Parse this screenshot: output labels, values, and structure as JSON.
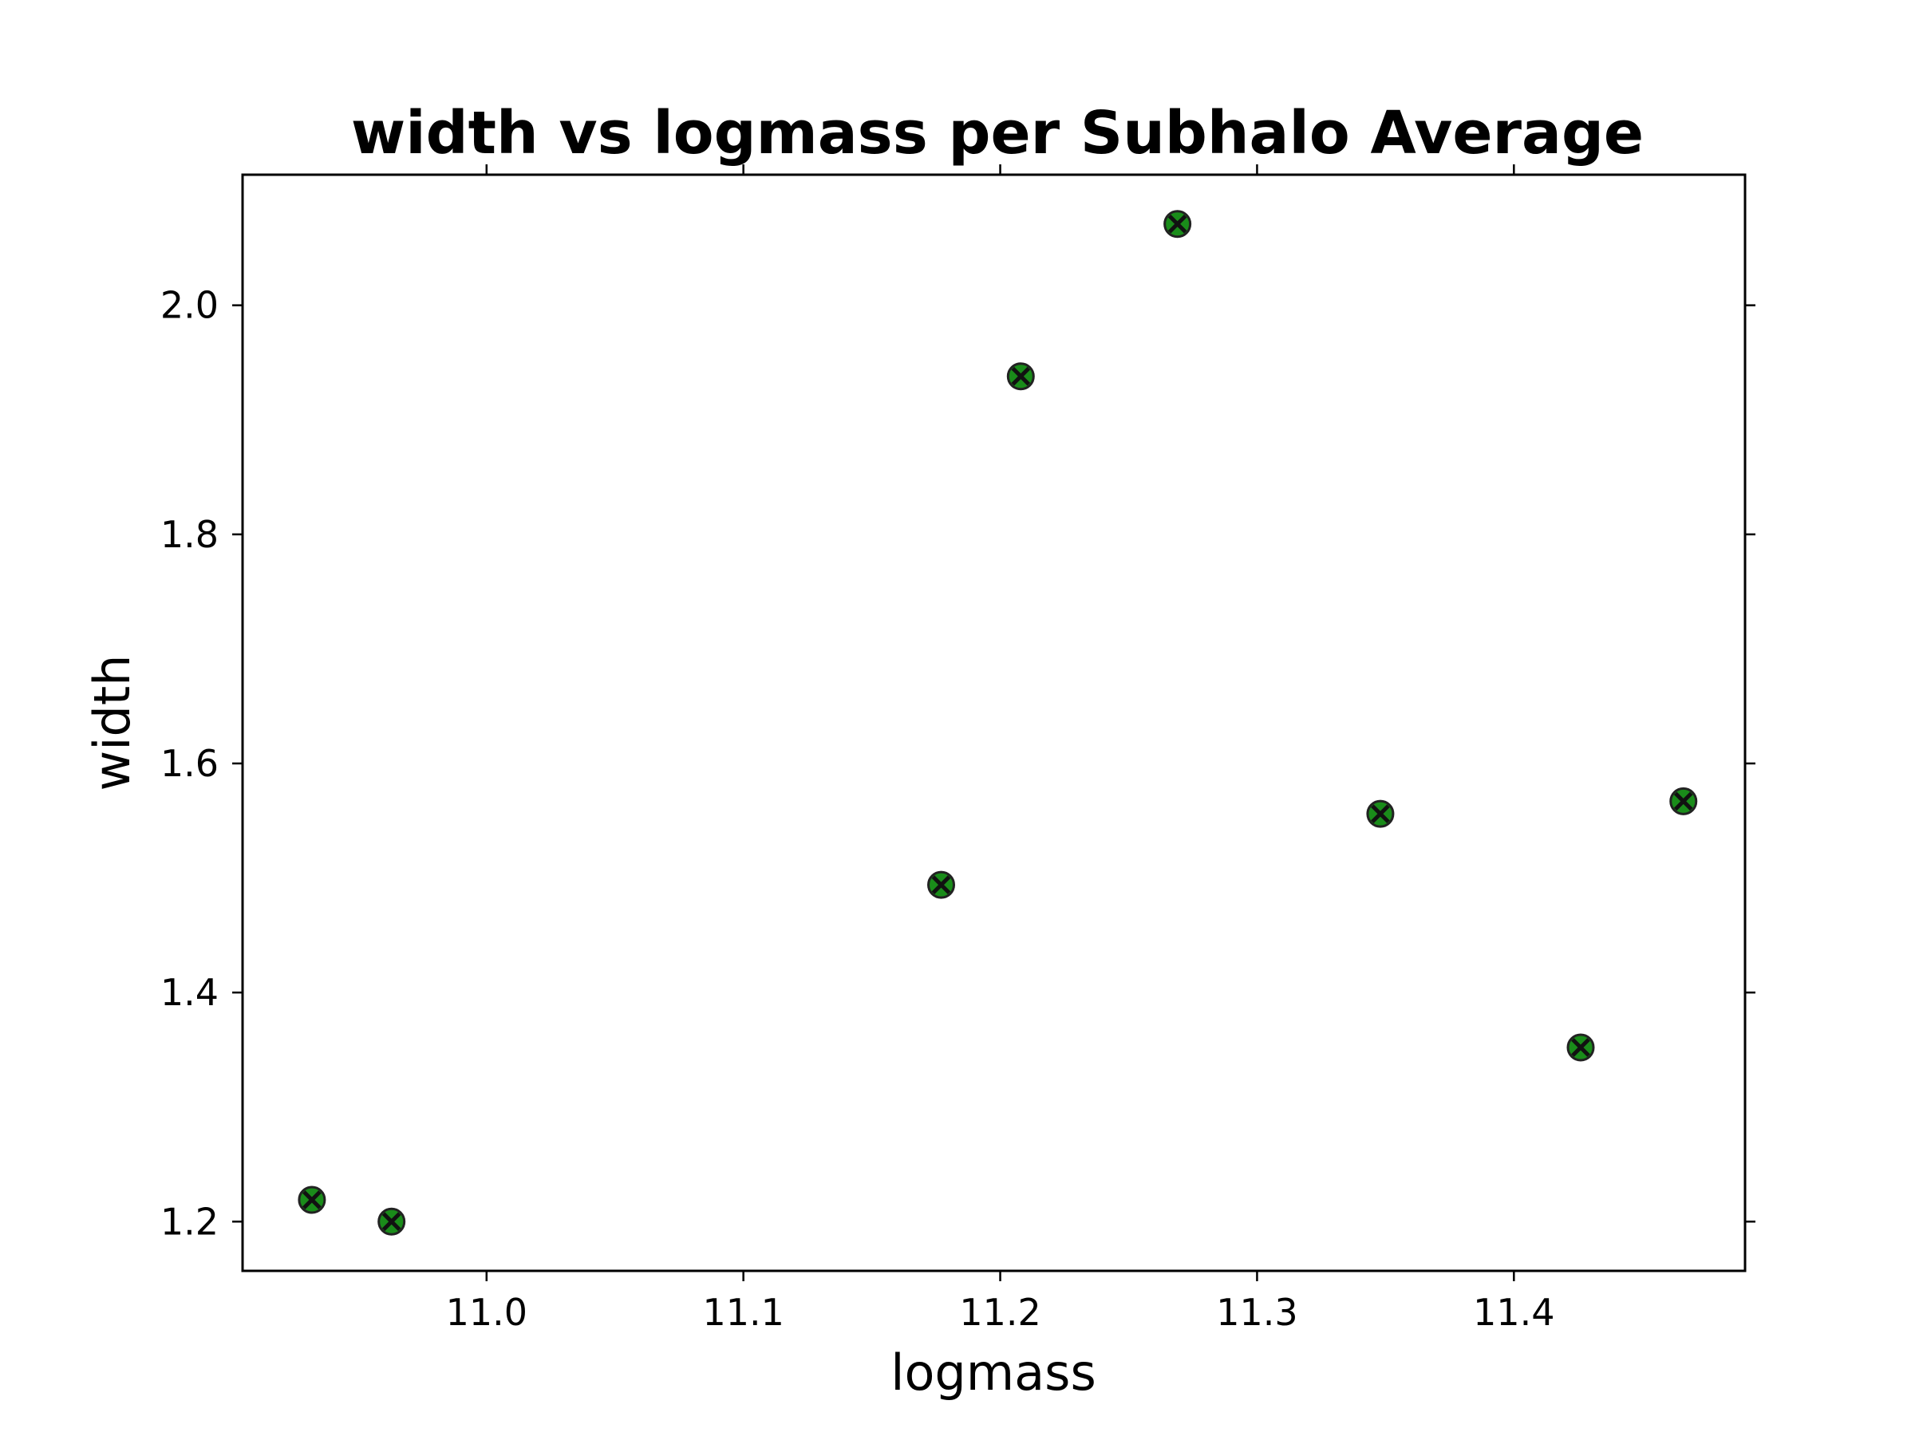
{
  "chart_data": {
    "type": "scatter",
    "title": "width vs logmass per Subhalo Average",
    "xlabel": "logmass",
    "ylabel": "width",
    "xlim": [
      10.905,
      11.49
    ],
    "ylim": [
      1.157,
      2.114
    ],
    "xticks": [
      11.0,
      11.1,
      11.2,
      11.3,
      11.4
    ],
    "xtick_labels": [
      "11.0",
      "11.1",
      "11.2",
      "11.3",
      "11.4"
    ],
    "yticks": [
      1.2,
      1.4,
      1.6,
      1.8,
      2.0
    ],
    "ytick_labels": [
      "1.2",
      "1.4",
      "1.6",
      "1.8",
      "2.0"
    ],
    "grid": false,
    "marker": "X",
    "marker_color": "#1a8c1a",
    "marker_edge_color": "#222222",
    "points": [
      {
        "x": 10.932,
        "y": 1.219
      },
      {
        "x": 10.963,
        "y": 1.2
      },
      {
        "x": 11.177,
        "y": 1.494
      },
      {
        "x": 11.208,
        "y": 1.938
      },
      {
        "x": 11.269,
        "y": 2.071
      },
      {
        "x": 11.348,
        "y": 1.556
      },
      {
        "x": 11.426,
        "y": 1.352
      },
      {
        "x": 11.466,
        "y": 1.567
      }
    ]
  }
}
